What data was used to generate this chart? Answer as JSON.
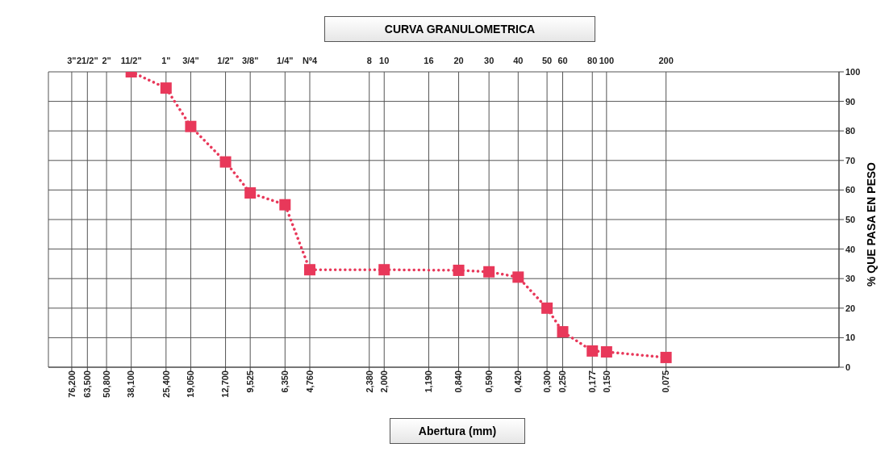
{
  "chart_data": {
    "type": "line",
    "title": "CURVA GRANULOMETRICA",
    "xlabel": "Abertura (mm)",
    "ylabel": "% QUE PASA EN PESO",
    "log": "x",
    "grid": true,
    "legend": false,
    "marker": "square",
    "line_style": "dotted",
    "xlim": [
      100,
      0.01
    ],
    "xticks": [
      {
        "value": 76.2,
        "label": "76,200"
      },
      {
        "value": 63.5,
        "label": "63,500"
      },
      {
        "value": 50.8,
        "label": "50,800"
      },
      {
        "value": 38.1,
        "label": "38,100"
      },
      {
        "value": 25.4,
        "label": "25,400"
      },
      {
        "value": 19.05,
        "label": "19,050"
      },
      {
        "value": 12.7,
        "label": "12,700"
      },
      {
        "value": 9.525,
        "label": "9,525"
      },
      {
        "value": 6.35,
        "label": "6,350"
      },
      {
        "value": 4.76,
        "label": "4,760"
      },
      {
        "value": 2.38,
        "label": "2,380"
      },
      {
        "value": 2.0,
        "label": "2,000"
      },
      {
        "value": 1.19,
        "label": "1,190"
      },
      {
        "value": 0.84,
        "label": "0,840"
      },
      {
        "value": 0.59,
        "label": "0,590"
      },
      {
        "value": 0.42,
        "label": "0,420"
      },
      {
        "value": 0.3,
        "label": "0,300"
      },
      {
        "value": 0.25,
        "label": "0,250"
      },
      {
        "value": 0.177,
        "label": "0,177"
      },
      {
        "value": 0.15,
        "label": "0,150"
      },
      {
        "value": 0.075,
        "label": "0,075"
      }
    ],
    "annotations": [
      "3\"",
      "21/2\"",
      "2\"",
      "11/2\"",
      "1\"",
      "3/4\"",
      "1/2\"",
      "3/8\"",
      "1/4\"",
      "Nº4",
      "8",
      "10",
      "16",
      "20",
      "30",
      "40",
      "50",
      "60",
      "80",
      "100",
      "200"
    ],
    "ylim": [
      0,
      100
    ],
    "yticks": [
      0,
      10,
      20,
      30,
      40,
      50,
      60,
      70,
      80,
      90,
      100
    ],
    "x": [
      38.1,
      25.4,
      19.05,
      12.7,
      9.525,
      6.35,
      4.76,
      2.0,
      0.84,
      0.59,
      0.42,
      0.3,
      0.25,
      0.177,
      0.15,
      0.075
    ],
    "series": [
      {
        "color": "#e8385a",
        "values": [
          100,
          94.5,
          81.5,
          69.5,
          59,
          55,
          33,
          33,
          32.8,
          32.3,
          30.5,
          20,
          12,
          5.5,
          5.2,
          3.3
        ]
      }
    ]
  }
}
